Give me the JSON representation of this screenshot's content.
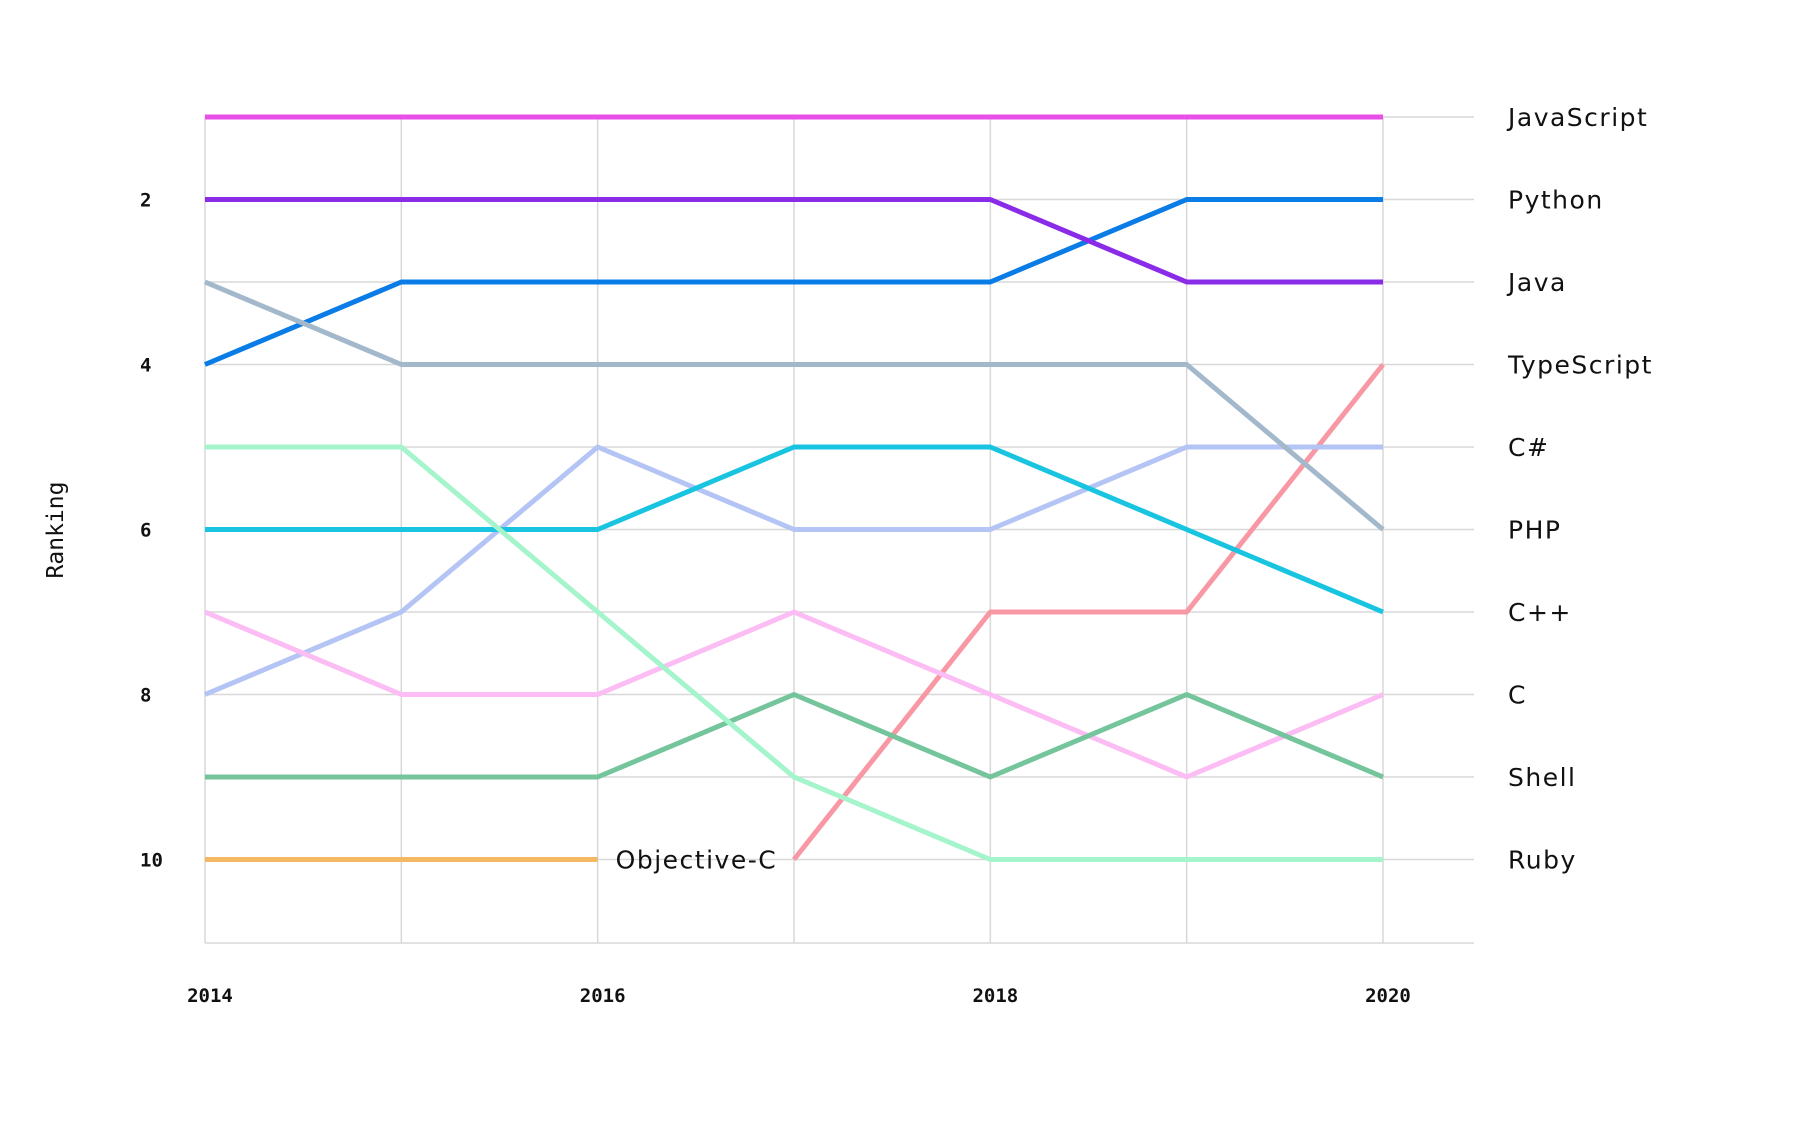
{
  "chart_data": {
    "type": "line",
    "ylabel": "Ranking",
    "xlabel": "",
    "x": [
      2014,
      2015,
      2016,
      2017,
      2018,
      2019,
      2020
    ],
    "xtick_labels": [
      "2014",
      "2016",
      "2018",
      "2020"
    ],
    "xlim": [
      2014,
      2020
    ],
    "ylim": [
      1,
      11
    ],
    "y_inverted": true,
    "ytick_labels": [
      "2",
      "4",
      "6",
      "8",
      "10"
    ],
    "grid": true,
    "rank_labels": [
      "JavaScript",
      "Python",
      "Java",
      "TypeScript",
      "C#",
      "PHP",
      "C++",
      "C",
      "Shell",
      "Ruby"
    ],
    "series": [
      {
        "name": "JavaScript",
        "color": "#e84ee8",
        "values": [
          1,
          1,
          1,
          1,
          1,
          1,
          1
        ]
      },
      {
        "name": "Python",
        "color": "#0a7ce6",
        "values": [
          4,
          3,
          3,
          3,
          3,
          2,
          2
        ]
      },
      {
        "name": "Java",
        "color": "#8a2be8",
        "values": [
          2,
          2,
          2,
          2,
          2,
          3,
          3
        ]
      },
      {
        "name": "TypeScript",
        "color": "#f898a4",
        "values": [
          null,
          null,
          null,
          10,
          7,
          7,
          4
        ]
      },
      {
        "name": "C#",
        "color": "#b4c4f4",
        "values": [
          8,
          7,
          5,
          6,
          6,
          5,
          5
        ]
      },
      {
        "name": "PHP",
        "color": "#a4b8cc",
        "values": [
          3,
          4,
          4,
          4,
          4,
          4,
          6
        ]
      },
      {
        "name": "C++",
        "color": "#18c4e0",
        "values": [
          6,
          6,
          6,
          5,
          5,
          6,
          7
        ]
      },
      {
        "name": "C",
        "color": "#fcbcf4",
        "values": [
          7,
          8,
          8,
          7,
          8,
          9,
          8
        ]
      },
      {
        "name": "Shell",
        "color": "#74c49c",
        "values": [
          9,
          9,
          9,
          8,
          9,
          8,
          9
        ]
      },
      {
        "name": "Ruby",
        "color": "#a4f4cc",
        "values": [
          5,
          5,
          7,
          9,
          10,
          10,
          10
        ]
      },
      {
        "name": "Objective-C",
        "color": "#f4b864",
        "values": [
          10,
          10,
          10,
          null,
          null,
          null,
          null
        ]
      }
    ],
    "annotations": [
      {
        "text": "Objective-C",
        "x": 2016,
        "y": 10
      }
    ]
  }
}
